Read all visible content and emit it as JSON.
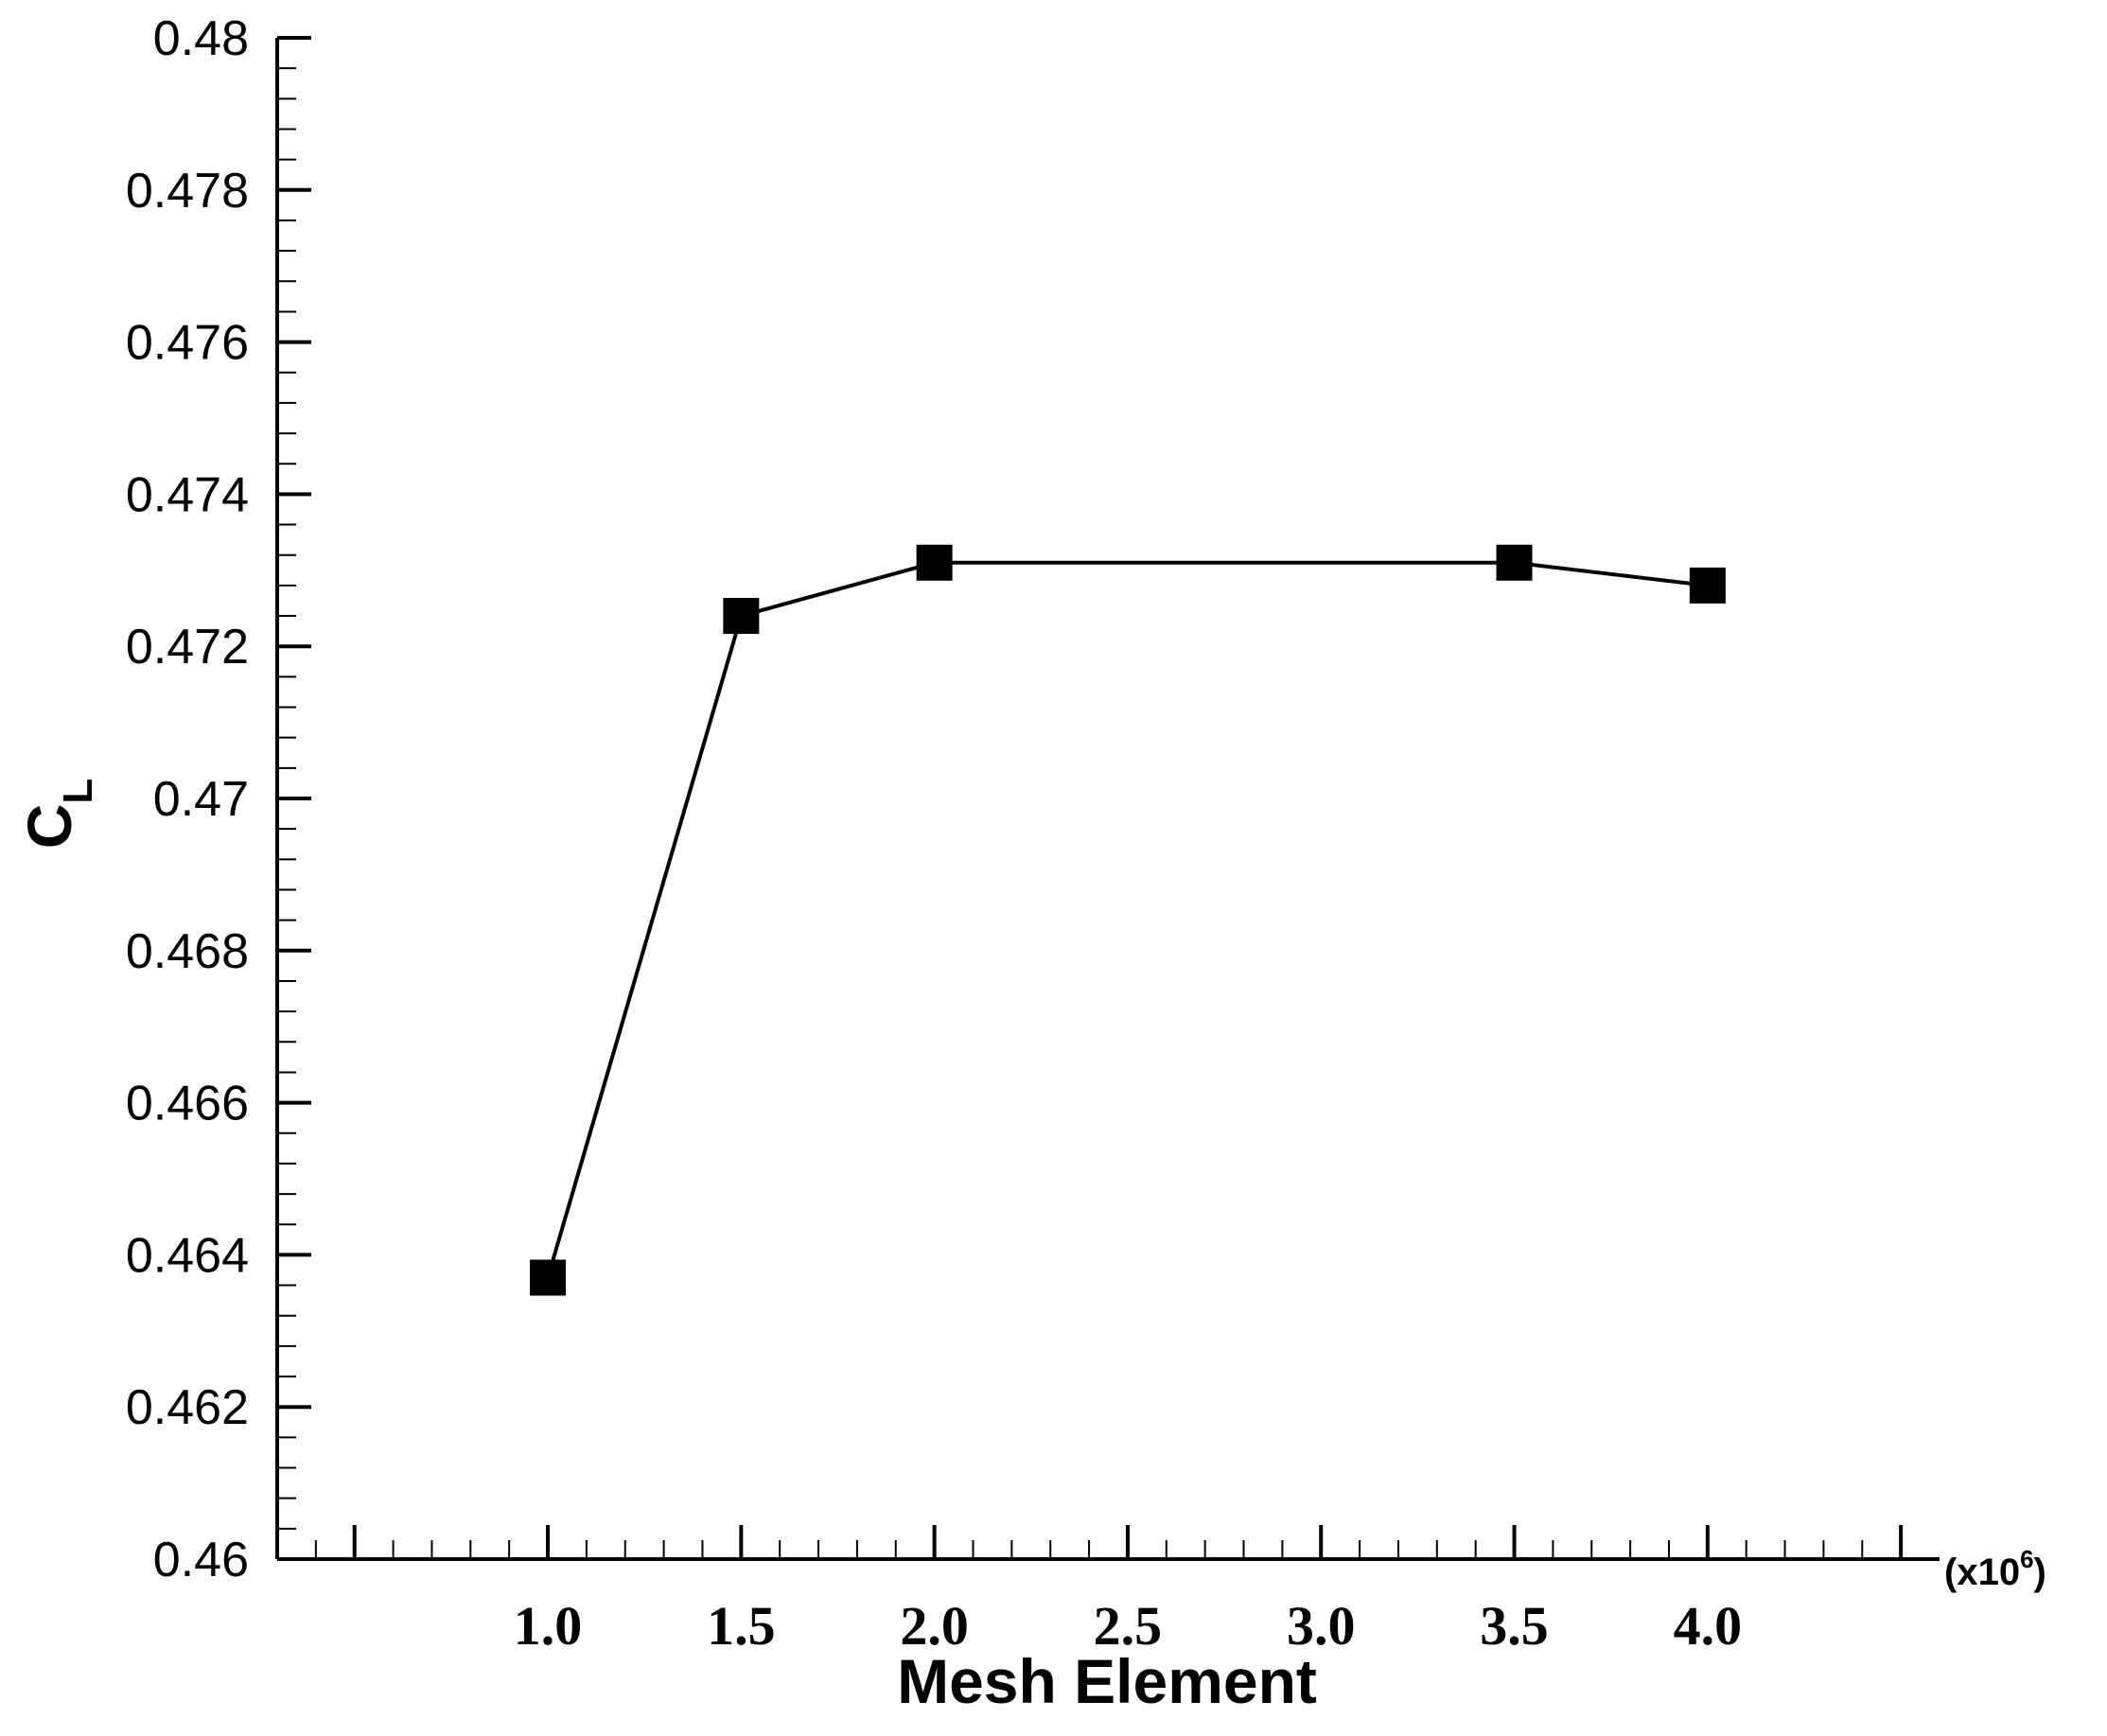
{
  "chart_data": {
    "type": "line",
    "title": "",
    "xlabel": "Mesh Element",
    "ylabel_main": "C",
    "ylabel_sub": "L",
    "x_multiplier": "(x10",
    "x_multiplier_exp": "6",
    "x_multiplier_close": ")",
    "xlim": [
      0.3,
      4.6
    ],
    "ylim": [
      0.46,
      0.48
    ],
    "x_major_ticks": [
      0.5,
      1.0,
      1.5,
      2.0,
      2.5,
      3.0,
      3.5,
      4.0,
      4.5
    ],
    "x_tick_labels": [
      {
        "value": 1.0,
        "label": "1.0"
      },
      {
        "value": 1.5,
        "label": "1.5"
      },
      {
        "value": 2.0,
        "label": "2.0"
      },
      {
        "value": 2.5,
        "label": "2.5"
      },
      {
        "value": 3.0,
        "label": "3.0"
      },
      {
        "value": 3.5,
        "label": "3.5"
      },
      {
        "value": 4.0,
        "label": "4.0"
      }
    ],
    "y_tick_labels": [
      {
        "value": 0.46,
        "label": "0.46"
      },
      {
        "value": 0.462,
        "label": "0.462"
      },
      {
        "value": 0.464,
        "label": "0.464"
      },
      {
        "value": 0.466,
        "label": "0.466"
      },
      {
        "value": 0.468,
        "label": "0.468"
      },
      {
        "value": 0.47,
        "label": "0.47"
      },
      {
        "value": 0.472,
        "label": "0.472"
      },
      {
        "value": 0.474,
        "label": "0.474"
      },
      {
        "value": 0.476,
        "label": "0.476"
      },
      {
        "value": 0.478,
        "label": "0.478"
      },
      {
        "value": 0.48,
        "label": "0.48"
      }
    ],
    "grid": false,
    "marker": "square",
    "series": [
      {
        "x": [
          1.0,
          1.5,
          2.0,
          3.5,
          4.0
        ],
        "y": [
          0.4637,
          0.4724,
          0.4731,
          0.4731,
          0.4728
        ]
      }
    ],
    "colors": {
      "line": "#000000",
      "marker": "#000000",
      "axis": "#000000"
    }
  }
}
